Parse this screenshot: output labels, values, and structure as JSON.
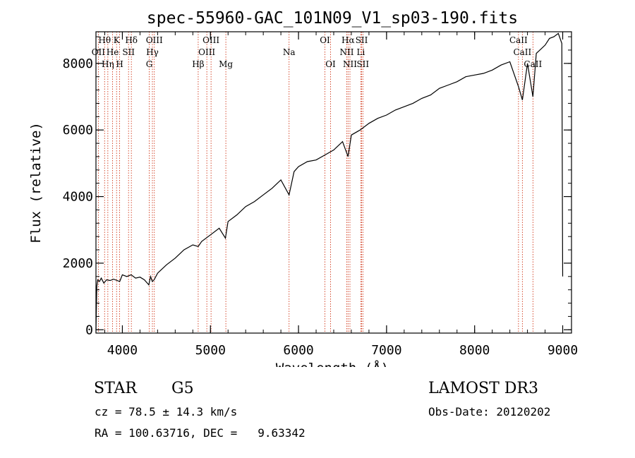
{
  "chart_data": {
    "type": "line",
    "title": "spec-55960-GAC_101N09_V1_sp03-190.fits",
    "xlabel": "Wavelength (Å)",
    "ylabel": "Flux (relative)",
    "xlim": [
      3700,
      9100
    ],
    "ylim": [
      -100,
      8950
    ],
    "x_ticks": [
      4000,
      5000,
      6000,
      7000,
      8000,
      9000
    ],
    "y_ticks": [
      0,
      2000,
      4000,
      6000,
      8000
    ],
    "series": [
      {
        "name": "flux",
        "x": [
          3700,
          3710,
          3720,
          3740,
          3760,
          3790,
          3820,
          3860,
          3900,
          3940,
          3970,
          4000,
          4050,
          4100,
          4150,
          4200,
          4250,
          4300,
          4320,
          4340,
          4360,
          4400,
          4500,
          4600,
          4700,
          4800,
          4861,
          4900,
          5000,
          5100,
          5170,
          5200,
          5300,
          5400,
          5500,
          5600,
          5700,
          5800,
          5893,
          5950,
          6000,
          6100,
          6200,
          6300,
          6400,
          6500,
          6563,
          6600,
          6700,
          6800,
          6900,
          7000,
          7100,
          7200,
          7300,
          7400,
          7500,
          7600,
          7700,
          7800,
          7900,
          8000,
          8100,
          8200,
          8300,
          8400,
          8498,
          8542,
          8600,
          8662,
          8700,
          8800,
          8850,
          8900,
          8950,
          8990,
          9000
        ],
        "y": [
          0,
          1300,
          1500,
          1450,
          1550,
          1400,
          1500,
          1480,
          1520,
          1480,
          1450,
          1650,
          1600,
          1650,
          1550,
          1580,
          1500,
          1350,
          1600,
          1450,
          1500,
          1700,
          1950,
          2150,
          2400,
          2550,
          2500,
          2650,
          2850,
          3050,
          2750,
          3250,
          3450,
          3700,
          3850,
          4050,
          4250,
          4500,
          4050,
          4750,
          4900,
          5050,
          5100,
          5250,
          5400,
          5650,
          5200,
          5850,
          6000,
          6200,
          6350,
          6450,
          6600,
          6700,
          6800,
          6950,
          7050,
          7250,
          7350,
          7450,
          7600,
          7650,
          7700,
          7800,
          7950,
          8050,
          7300,
          6900,
          8000,
          7000,
          8300,
          8550,
          8750,
          8800,
          8900,
          8600,
          1600
        ]
      }
    ],
    "spectral_lines": [
      {
        "label": "Hθ",
        "x": 3798,
        "row": 0
      },
      {
        "label": "OII",
        "x": 3727,
        "row": 1
      },
      {
        "label": "Hη",
        "x": 3835,
        "row": 2
      },
      {
        "label": "He",
        "x": 3889,
        "row": 1
      },
      {
        "label": "K",
        "x": 3934,
        "row": 0
      },
      {
        "label": "H",
        "x": 3969,
        "row": 2
      },
      {
        "label": "Hδ",
        "x": 4102,
        "row": 0
      },
      {
        "label": "SII",
        "x": 4070,
        "row": 1
      },
      {
        "label": "OIII",
        "x": 4363,
        "row": 0
      },
      {
        "label": "Hγ",
        "x": 4341,
        "row": 1
      },
      {
        "label": "G",
        "x": 4305,
        "row": 2
      },
      {
        "label": "Hβ",
        "x": 4861,
        "row": 2
      },
      {
        "label": "OIII",
        "x": 5007,
        "row": 0
      },
      {
        "label": "OIII",
        "x": 4959,
        "row": 1
      },
      {
        "label": "Mg",
        "x": 5175,
        "row": 2
      },
      {
        "label": "Na",
        "x": 5893,
        "row": 1
      },
      {
        "label": "OI",
        "x": 6300,
        "row": 0
      },
      {
        "label": "OI",
        "x": 6364,
        "row": 2
      },
      {
        "label": "Hα",
        "x": 6563,
        "row": 0
      },
      {
        "label": "NII",
        "x": 6548,
        "row": 1
      },
      {
        "label": "NII",
        "x": 6584,
        "row": 2
      },
      {
        "label": "SII",
        "x": 6717,
        "row": 0
      },
      {
        "label": "Li",
        "x": 6708,
        "row": 1
      },
      {
        "label": "SII",
        "x": 6731,
        "row": 2
      },
      {
        "label": "CaII",
        "x": 8498,
        "row": 0
      },
      {
        "label": "CaII",
        "x": 8542,
        "row": 1
      },
      {
        "label": "CaII",
        "x": 8662,
        "row": 2
      }
    ]
  },
  "info": {
    "object_class": "STAR",
    "subclass": "G5",
    "survey": "LAMOST DR3",
    "cz": "cz = 78.5 ± 14.3 km/s",
    "obs_date": "Obs-Date: 20120202",
    "coords": "RA = 100.63716, DEC =   9.63342"
  },
  "colors": {
    "line_marker": "#cc2200",
    "spectrum": "#000000",
    "axes": "#000000"
  }
}
